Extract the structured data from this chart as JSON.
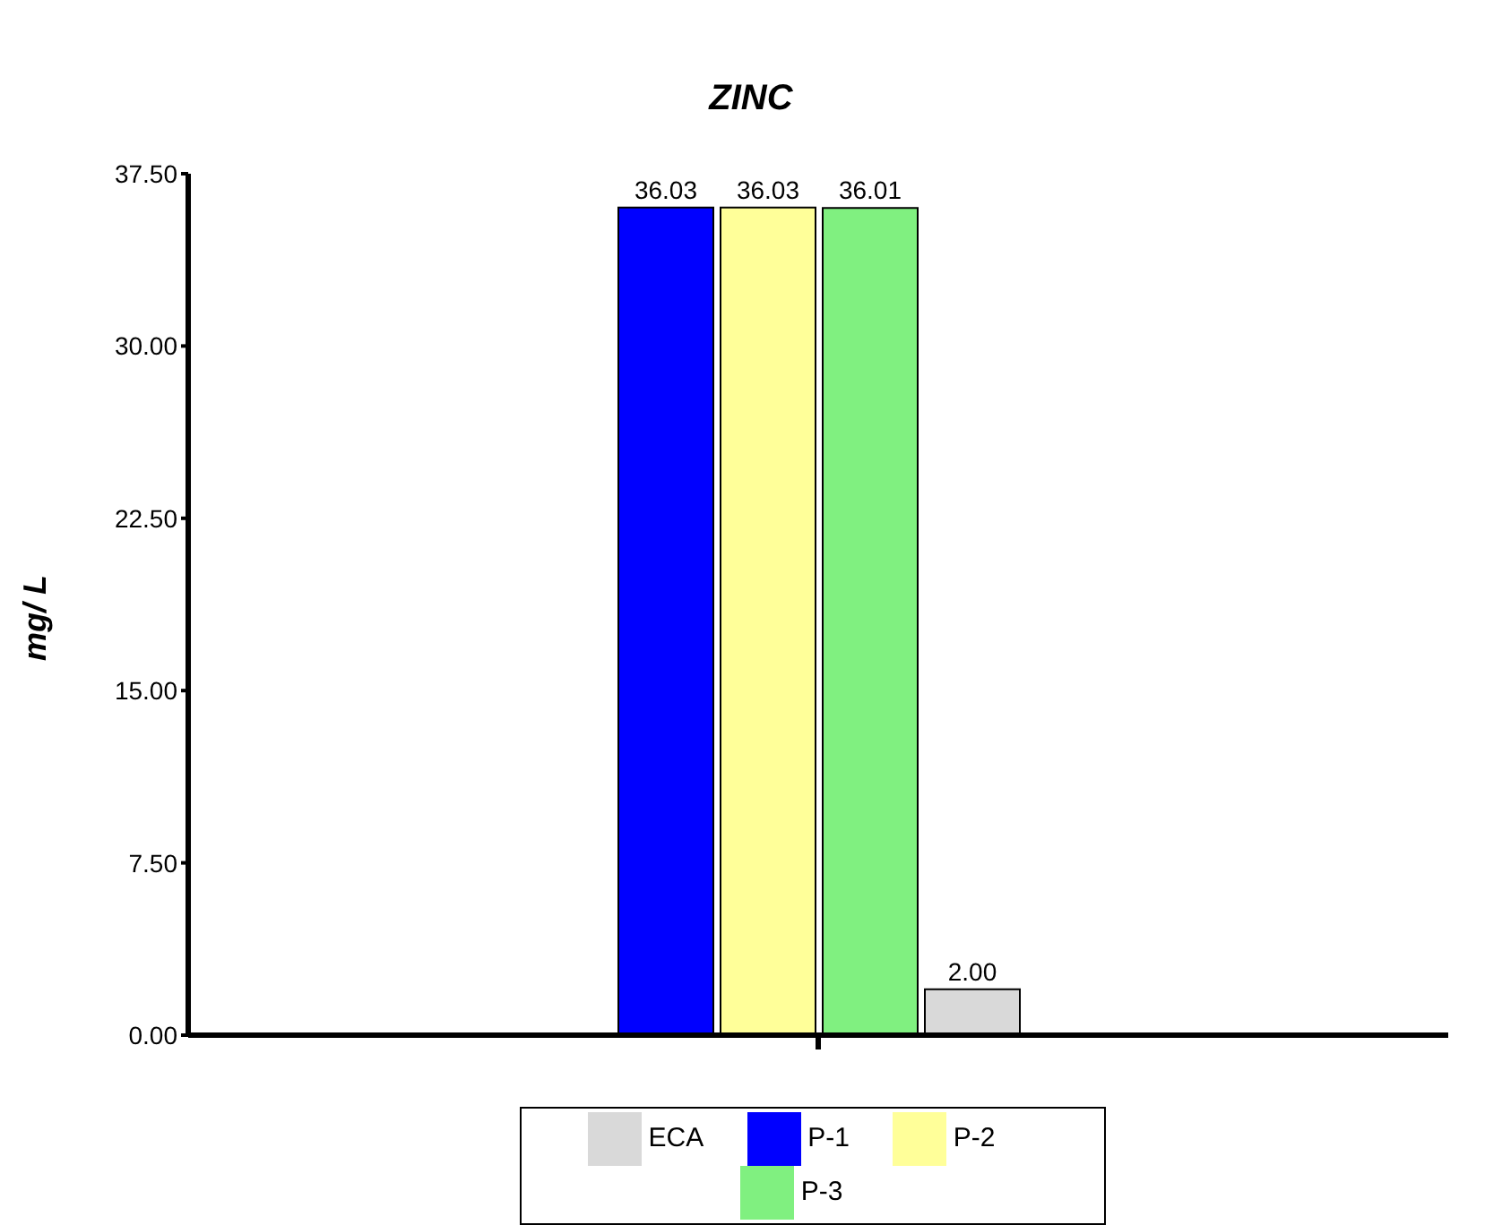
{
  "chart_data": {
    "type": "bar",
    "title": "ZINC",
    "ylabel": "mg/ L",
    "categories": [
      null
    ],
    "series": [
      {
        "name": "P-1",
        "color": "#0000ff",
        "values": [
          36.03
        ],
        "value_labels": [
          "36.03"
        ]
      },
      {
        "name": "P-2",
        "color": "#ffff99",
        "values": [
          36.03
        ],
        "value_labels": [
          "36.03"
        ]
      },
      {
        "name": "P-3",
        "color": "#80f080",
        "values": [
          36.01
        ],
        "value_labels": [
          "36.01"
        ]
      },
      {
        "name": "ECA",
        "color": "#d9d9d9",
        "values": [
          2.0
        ],
        "value_labels": [
          "2.00"
        ]
      }
    ],
    "ylim": [
      0,
      37.5
    ],
    "yticks": [
      {
        "value": 0,
        "label": "0.00"
      },
      {
        "value": 7.5,
        "label": "7.50"
      },
      {
        "value": 15,
        "label": "15.00"
      },
      {
        "value": 22.5,
        "label": "22.50"
      },
      {
        "value": 30,
        "label": "30.00"
      },
      {
        "value": 37.5,
        "label": "37.50"
      }
    ],
    "grid": false,
    "legend": "bottom"
  }
}
